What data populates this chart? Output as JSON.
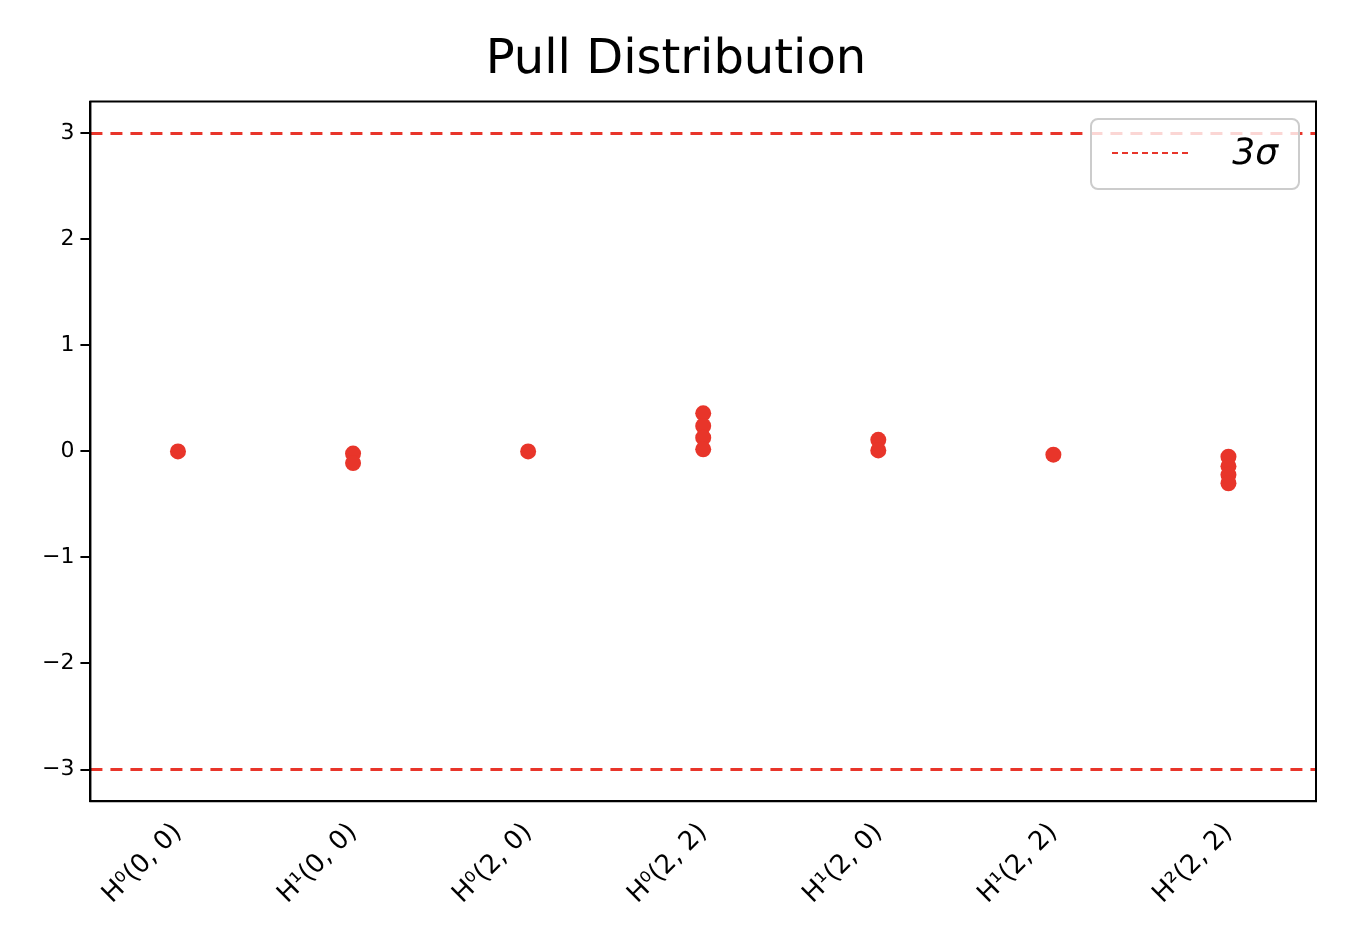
{
  "chart_data": {
    "type": "scatter",
    "title": "Pull Distribution",
    "categories": [
      "H⁰(0, 0)",
      "H¹(0, 0)",
      "H⁰(2, 0)",
      "H⁰(2, 2)",
      "H¹(2, 0)",
      "H¹(2, 2)",
      "H²(2, 2)"
    ],
    "series": [
      {
        "color": "#e8352a",
        "x": [
          "H⁰(0, 0)",
          "H¹(0, 0)",
          "H¹(0, 0)",
          "H⁰(2, 0)",
          "H⁰(2, 2)",
          "H⁰(2, 2)",
          "H⁰(2, 2)",
          "H⁰(2, 2)",
          "H¹(2, 0)",
          "H¹(2, 0)",
          "H¹(2, 2)",
          "H²(2, 2)",
          "H²(2, 2)",
          "H²(2, 2)",
          "H²(2, 2)"
        ],
        "values": [
          0,
          -0.02,
          -0.11,
          0,
          0.36,
          0.24,
          0.13,
          0.02,
          0.11,
          0.01,
          -0.03,
          -0.05,
          -0.14,
          -0.22,
          -0.3
        ]
      }
    ],
    "ylim": [
      -3.3,
      3.3
    ],
    "yticks": [
      {
        "value": -3,
        "label": "−3"
      },
      {
        "value": -2,
        "label": "−2"
      },
      {
        "value": -1,
        "label": "−1"
      },
      0,
      1,
      2,
      3
    ],
    "ref_lines": [
      {
        "axis": "y",
        "value": 3,
        "label": "3σ",
        "color": "#e8352a",
        "line_style": "dashed"
      },
      {
        "axis": "y",
        "value": -3,
        "color": "#e8352a",
        "line_style": "dashed"
      }
    ],
    "legend": "top right",
    "grid": false,
    "marker": "circle"
  }
}
